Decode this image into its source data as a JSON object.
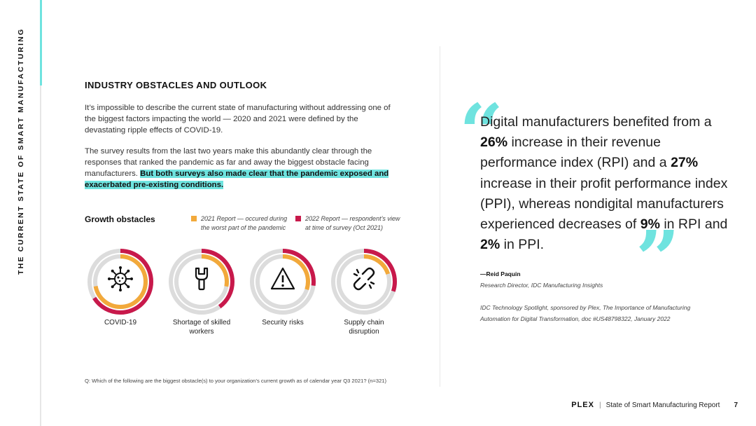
{
  "sidebar": {
    "title": "THE CURRENT STATE OF SMART MANUFACTURING"
  },
  "section": {
    "heading": "INDUSTRY OBSTACLES AND OUTLOOK",
    "paragraph1": "It’s impossible to describe the current state of manufacturing without addressing one of the biggest factors impacting the world — 2020 and 2021 were defined by the devastating ripple effects of COVID-19.",
    "paragraph2_plain": "The survey results from the last two years make this abundantly clear through the responses that ranked the pandemic as far and away the biggest obstacle facing manufacturers. ",
    "paragraph2_highlight": "But both surveys also made clear that the pandemic exposed and exacerbated pre-existing conditions."
  },
  "obstacles": {
    "title": "Growth obstacles",
    "legend_2021": "2021 Report — occured during the worst part of the pandemic",
    "legend_2022": "2022 Report — respondent’s view at time of survey (Oct 2021)",
    "items": [
      {
        "label": "COVID-19",
        "icon": "virus-icon",
        "r2021": 0.72,
        "r2022": 0.66
      },
      {
        "label": "Shortage of skilled workers",
        "icon": "wrench-icon",
        "r2021": 0.28,
        "r2022": 0.4
      },
      {
        "label": "Security risks",
        "icon": "warning-triangle-icon",
        "r2021": 0.3,
        "r2022": 0.27
      },
      {
        "label": "Supply chain disruption",
        "icon": "broken-link-icon",
        "r2021": 0.2,
        "r2022": 0.3
      }
    ],
    "footnote": "Q: Which of the following are the biggest obstacle(s) to your organization’s current growth as of calendar year Q3 2021? (n=321)"
  },
  "quote": {
    "text_parts": [
      {
        "t": "Digital manufacturers benefited from a ",
        "b": false
      },
      {
        "t": "26%",
        "b": true
      },
      {
        "t": " increase in their revenue performance index (RPI) and a ",
        "b": false
      },
      {
        "t": "27%",
        "b": true
      },
      {
        "t": " increase in their profit performance index (PPI), whereas nondigital manufacturers experienced decreases of ",
        "b": false
      },
      {
        "t": "9%",
        "b": true
      },
      {
        "t": " in RPI and ",
        "b": false
      },
      {
        "t": "2%",
        "b": true
      },
      {
        "t": " in PPI.",
        "b": false
      }
    ],
    "author": "—Reid Paquin",
    "role": "Research Director, IDC Manufacturing Insights",
    "source": "IDC Technology Spotlight, sponsored by Plex, The Importance of Manufacturing Automation for Digital Transformation, doc #US48798322, January 2022"
  },
  "footer": {
    "logo": "PLEX",
    "report": "State of Smart Manufacturing Report",
    "page": "7"
  },
  "colors": {
    "accent": "#6fe3df",
    "series_2021": "#f2a93b",
    "series_2022": "#c8194b",
    "ring_track": "#dcdcdc"
  }
}
